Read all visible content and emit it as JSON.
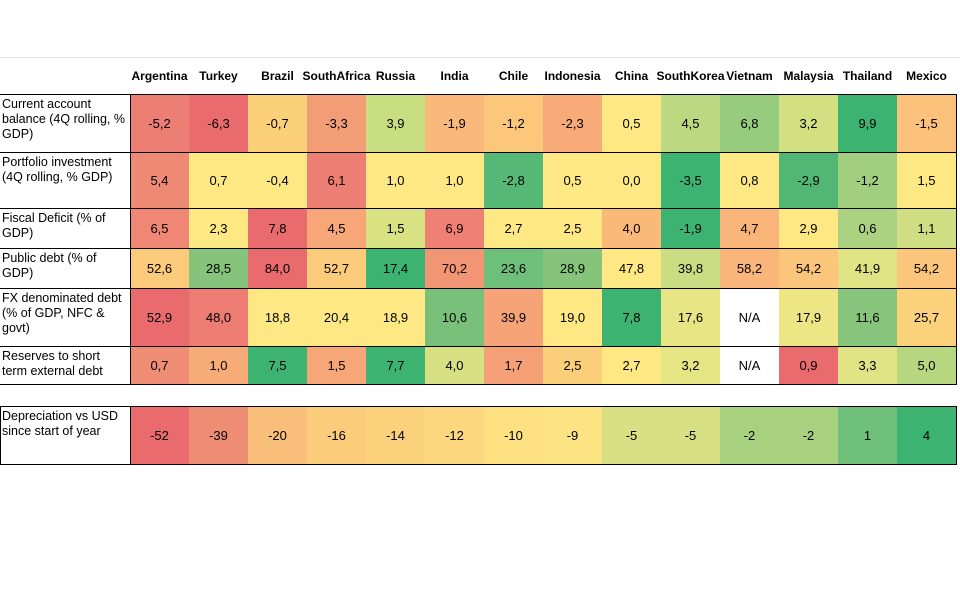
{
  "chart_data": {
    "type": "table",
    "columns": [
      "Argentina",
      "Turkey",
      "Brazil",
      "South Africa",
      "Russia",
      "India",
      "Chile",
      "Indonesia",
      "China",
      "South Korea",
      "Vietnam",
      "Malaysia",
      "Thailand",
      "Mexico"
    ],
    "column_headers": [
      [
        "Argentina"
      ],
      [
        "Turkey"
      ],
      [
        "Brazil"
      ],
      [
        "South",
        "Africa"
      ],
      [
        "Russia"
      ],
      [
        "India"
      ],
      [
        "Chile"
      ],
      [
        "Indonesia"
      ],
      [
        "China"
      ],
      [
        "South",
        "Korea"
      ],
      [
        "Vietnam"
      ],
      [
        "Malaysia"
      ],
      [
        "Thailand"
      ],
      [
        "Mexico"
      ]
    ],
    "rows": [
      {
        "label": "Current account balance (4Q rolling, % GDP)",
        "values": [
          "-5,2",
          "-6,3",
          "-0,7",
          "-3,3",
          "3,9",
          "-1,9",
          "-1,2",
          "-2,3",
          "0,5",
          "4,5",
          "6,8",
          "3,2",
          "9,9",
          "-1,5"
        ],
        "colors": [
          "#ec7e73",
          "#ea6b6d",
          "#fbd078",
          "#f39d77",
          "#c9dd81",
          "#fab97a",
          "#fcc67b",
          "#f8ab78",
          "#fde883",
          "#bcd880",
          "#97cb7d",
          "#d2e082",
          "#3cb371",
          "#fcc27b"
        ]
      },
      {
        "label": "Portfolio investment (4Q rolling, % GDP)",
        "values": [
          "5,4",
          "0,7",
          "-0,4",
          "6,1",
          "1,0",
          "1,0",
          "-2,8",
          "0,5",
          "0,0",
          "-3,5",
          "0,8",
          "-2,9",
          "-1,2",
          "1,5"
        ],
        "colors": [
          "#ee8a74",
          "#fde883",
          "#fde883",
          "#ec7e73",
          "#fde883",
          "#fde883",
          "#55b876",
          "#fde883",
          "#fde883",
          "#3cb371",
          "#fde883",
          "#52b675",
          "#a2cf7f",
          "#fde883"
        ]
      },
      {
        "label": "Fiscal Deficit (% of GDP)",
        "values": [
          "6,5",
          "2,3",
          "7,8",
          "4,5",
          "1,5",
          "6,9",
          "2,7",
          "2,5",
          "4,0",
          "-1,9",
          "4,7",
          "2,9",
          "0,6",
          "1,1"
        ],
        "colors": [
          "#ef8774",
          "#fde883",
          "#ea6b6d",
          "#f7a677",
          "#d9e283",
          "#ee8173",
          "#fde883",
          "#fde883",
          "#f9b979",
          "#3cb371",
          "#f8b479",
          "#fde883",
          "#aad280",
          "#cfde82"
        ]
      },
      {
        "label": "Public debt (% of GDP)",
        "values": [
          "52,6",
          "28,5",
          "84,0",
          "52,7",
          "17,4",
          "70,2",
          "23,6",
          "28,9",
          "47,8",
          "39,8",
          "58,2",
          "54,2",
          "41,9",
          "54,2"
        ],
        "colors": [
          "#fbca7a",
          "#86c47b",
          "#ea6b6d",
          "#fbca7a",
          "#3cb371",
          "#f29574",
          "#6ebf79",
          "#86c47b",
          "#fde883",
          "#cadd82",
          "#fab57a",
          "#fbc67b",
          "#e0e383",
          "#fbc67b"
        ]
      },
      {
        "label": "FX denominated debt (% of GDP, NFC & govt)",
        "values": [
          "52,9",
          "48,0",
          "18,8",
          "20,4",
          "18,9",
          "10,6",
          "39,9",
          "19,0",
          "7,8",
          "17,6",
          "N/A",
          "17,9",
          "11,6",
          "25,7"
        ],
        "colors": [
          "#ea6b6d",
          "#ed7d73",
          "#fde883",
          "#fde883",
          "#fde883",
          "#79c17a",
          "#f6a477",
          "#fde883",
          "#3cb371",
          "#e8e584",
          "#ffffff",
          "#eee684",
          "#88c57c",
          "#fcd17c"
        ]
      },
      {
        "label": "Reserves to short term external debt",
        "values": [
          "0,7",
          "1,0",
          "7,5",
          "1,5",
          "7,7",
          "4,0",
          "1,7",
          "2,5",
          "2,7",
          "3,2",
          "N/A",
          "0,9",
          "3,3",
          "5,0"
        ],
        "colors": [
          "#ef8c74",
          "#f7ac78",
          "#3cb371",
          "#f7a677",
          "#3cb371",
          "#d7e083",
          "#f6a077",
          "#fbce7a",
          "#fde883",
          "#e5e584",
          "#ffffff",
          "#ea6b6d",
          "#e0e383",
          "#b7d680"
        ]
      }
    ],
    "depreciation_row": {
      "label": "Depreciation vs USD since start of year",
      "values": [
        "-52",
        "-39",
        "-20",
        "-16",
        "-14",
        "-12",
        "-10",
        "-9",
        "-5",
        "-5",
        "-2",
        "-2",
        "1",
        "4"
      ],
      "colors": [
        "#ea6b6d",
        "#ef8c74",
        "#f9bf7a",
        "#fbcd7a",
        "#fcd17c",
        "#fdd77e",
        "#fde07f",
        "#fde482",
        "#d7e083",
        "#d7e083",
        "#a8d17f",
        "#a8d17f",
        "#6ebf79",
        "#3cb371"
      ]
    }
  }
}
